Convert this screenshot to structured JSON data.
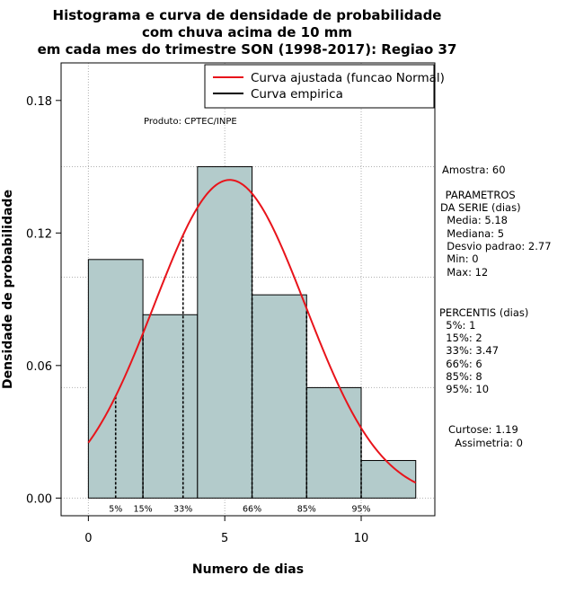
{
  "chart_data": {
    "type": "bar",
    "title_lines": [
      "Histograma e curva de densidade de probabilidade",
      "com chuva acima de 10 mm",
      "em cada mes do trimestre SON (1998-2017): Regiao 37"
    ],
    "xlabel": "Numero de dias",
    "ylabel": "Densidade de probabilidade",
    "xlim": [
      -1,
      12.7
    ],
    "ylim": [
      -0.008,
      0.197
    ],
    "x_ticks": [
      0,
      5,
      10
    ],
    "y_ticks": [
      0.0,
      0.06,
      0.12,
      0.18
    ],
    "y_tick_labels": [
      "0.00",
      "0.06",
      "0.12",
      "0.18"
    ],
    "bins": [
      {
        "from": 0,
        "to": 2,
        "density": 0.108
      },
      {
        "from": 2,
        "to": 4,
        "density": 0.083
      },
      {
        "from": 4,
        "to": 6,
        "density": 0.15
      },
      {
        "from": 6,
        "to": 8,
        "density": 0.092
      },
      {
        "from": 8,
        "to": 10,
        "density": 0.05
      },
      {
        "from": 10,
        "to": 12,
        "density": 0.017
      }
    ],
    "normal_curve": {
      "mean": 5.18,
      "sd": 2.77,
      "x_from": 0,
      "x_to": 12
    },
    "grid_x": [
      0,
      5,
      10
    ],
    "grid_y": [
      0.0,
      0.05,
      0.1,
      0.15
    ],
    "percentile_lines": [
      {
        "label": "5%",
        "x": 1
      },
      {
        "label": "15%",
        "x": 2
      },
      {
        "label": "33%",
        "x": 3.47
      },
      {
        "label": "66%",
        "x": 6
      },
      {
        "label": "85%",
        "x": 8
      },
      {
        "label": "95%",
        "x": 10
      }
    ],
    "legend": [
      {
        "label": "Curva ajustada (funcao Normal)",
        "color": "#e8141b"
      },
      {
        "label": "Curva empirica",
        "color": "#000000"
      }
    ],
    "annotation": "Produto: CPTEC/INPE",
    "bar_color": "#b3cbcb",
    "curve_color": "#e8141b",
    "side_text": [
      "Amostra: 60",
      " PARAMETROS",
      "DA SERIE (dias)",
      "  Media: 5.18",
      "  Mediana: 5",
      "  Desvio padrao: 2.77",
      "  Min: 0",
      "  Max: 12",
      "PERCENTIS (dias)",
      "  5%: 1",
      "  15%: 2",
      "  33%: 3.47",
      "  66%: 6",
      "  85%: 8",
      "  95%: 10",
      "Curtose: 1.19",
      "  Assimetria: 0"
    ]
  }
}
